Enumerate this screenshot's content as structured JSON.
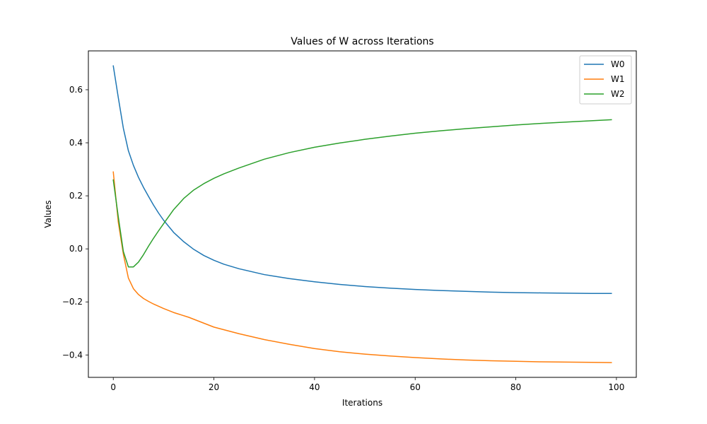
{
  "chart_data": {
    "type": "line",
    "title": "Values of W across Iterations",
    "xlabel": "Iterations",
    "ylabel": "Values",
    "xlim": [
      -4.95,
      103.95
    ],
    "ylim": [
      -0.4845,
      0.7465
    ],
    "xticks": [
      0,
      20,
      40,
      60,
      80,
      100
    ],
    "yticks": [
      -0.4,
      -0.2,
      0.0,
      0.2,
      0.4,
      0.6
    ],
    "xtick_labels": [
      "0",
      "20",
      "40",
      "60",
      "80",
      "100"
    ],
    "ytick_labels": [
      "−0.4",
      "−0.2",
      "0.0",
      "0.2",
      "0.4",
      "0.6"
    ],
    "grid": false,
    "legend_position": "top-right",
    "series": [
      {
        "name": "W0",
        "color": "#1f77b4",
        "x": [
          0,
          1,
          2,
          3,
          4,
          5,
          6,
          7,
          8,
          9,
          10,
          12,
          14,
          16,
          18,
          20,
          22,
          25,
          30,
          35,
          40,
          45,
          50,
          55,
          60,
          65,
          70,
          75,
          80,
          85,
          90,
          95,
          99
        ],
        "y": [
          0.69,
          0.57,
          0.455,
          0.37,
          0.315,
          0.27,
          0.232,
          0.198,
          0.165,
          0.135,
          0.108,
          0.062,
          0.027,
          -0.002,
          -0.025,
          -0.043,
          -0.058,
          -0.075,
          -0.097,
          -0.112,
          -0.124,
          -0.134,
          -0.142,
          -0.148,
          -0.153,
          -0.157,
          -0.16,
          -0.163,
          -0.165,
          -0.166,
          -0.167,
          -0.168,
          -0.168
        ]
      },
      {
        "name": "W1",
        "color": "#ff7f0e",
        "x": [
          0,
          1,
          2,
          3,
          4,
          5,
          6,
          7,
          8,
          10,
          12,
          15,
          20,
          25,
          30,
          35,
          40,
          45,
          50,
          55,
          60,
          65,
          70,
          75,
          80,
          85,
          90,
          95,
          99
        ],
        "y": [
          0.29,
          0.1,
          -0.02,
          -0.11,
          -0.15,
          -0.172,
          -0.187,
          -0.198,
          -0.208,
          -0.225,
          -0.24,
          -0.258,
          -0.295,
          -0.32,
          -0.342,
          -0.36,
          -0.376,
          -0.388,
          -0.397,
          -0.404,
          -0.41,
          -0.415,
          -0.419,
          -0.422,
          -0.424,
          -0.426,
          -0.427,
          -0.428,
          -0.429
        ]
      },
      {
        "name": "W2",
        "color": "#2ca02c",
        "x": [
          0,
          1,
          2,
          3,
          4,
          5,
          6,
          7,
          8,
          9,
          10,
          12,
          14,
          16,
          18,
          20,
          22,
          25,
          30,
          35,
          40,
          45,
          50,
          55,
          60,
          65,
          70,
          75,
          80,
          85,
          90,
          95,
          99
        ],
        "y": [
          0.26,
          0.12,
          -0.01,
          -0.068,
          -0.068,
          -0.05,
          -0.022,
          0.01,
          0.04,
          0.068,
          0.095,
          0.148,
          0.19,
          0.222,
          0.246,
          0.266,
          0.283,
          0.305,
          0.338,
          0.363,
          0.383,
          0.399,
          0.413,
          0.425,
          0.436,
          0.445,
          0.453,
          0.46,
          0.467,
          0.473,
          0.478,
          0.483,
          0.487
        ]
      }
    ]
  }
}
